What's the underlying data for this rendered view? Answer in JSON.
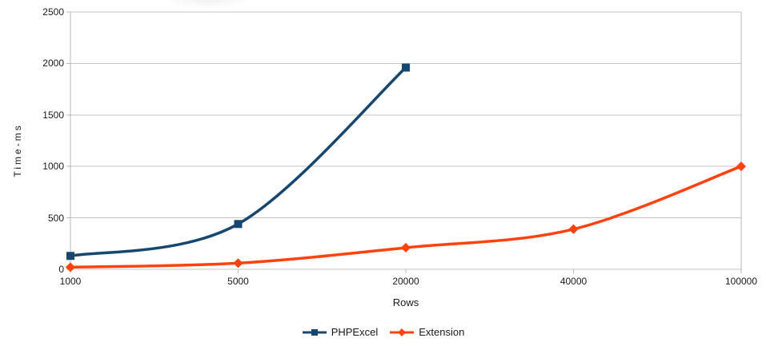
{
  "chart_data": {
    "type": "line",
    "categories": [
      "1000",
      "5000",
      "20000",
      "40000",
      "100000"
    ],
    "series": [
      {
        "name": "PHPExcel",
        "color": "#17466F",
        "marker": "square",
        "values": [
          130,
          440,
          1960,
          null,
          null
        ]
      },
      {
        "name": "Extension",
        "color": "#FF420E",
        "marker": "diamond",
        "values": [
          20,
          60,
          210,
          390,
          1000
        ]
      }
    ],
    "xlabel": "Rows",
    "ylabel": "Time-ms",
    "ylim": [
      0,
      2500
    ],
    "yticks": [
      0,
      500,
      1000,
      1500,
      2000,
      2500
    ],
    "smoothed": true,
    "grid": "horizontal",
    "legend_position": "bottom",
    "colors": {
      "grid": "#c3c3c3",
      "axis": "#b8b8b8",
      "text": "#1a1a1a",
      "background": "#ffffff"
    }
  }
}
